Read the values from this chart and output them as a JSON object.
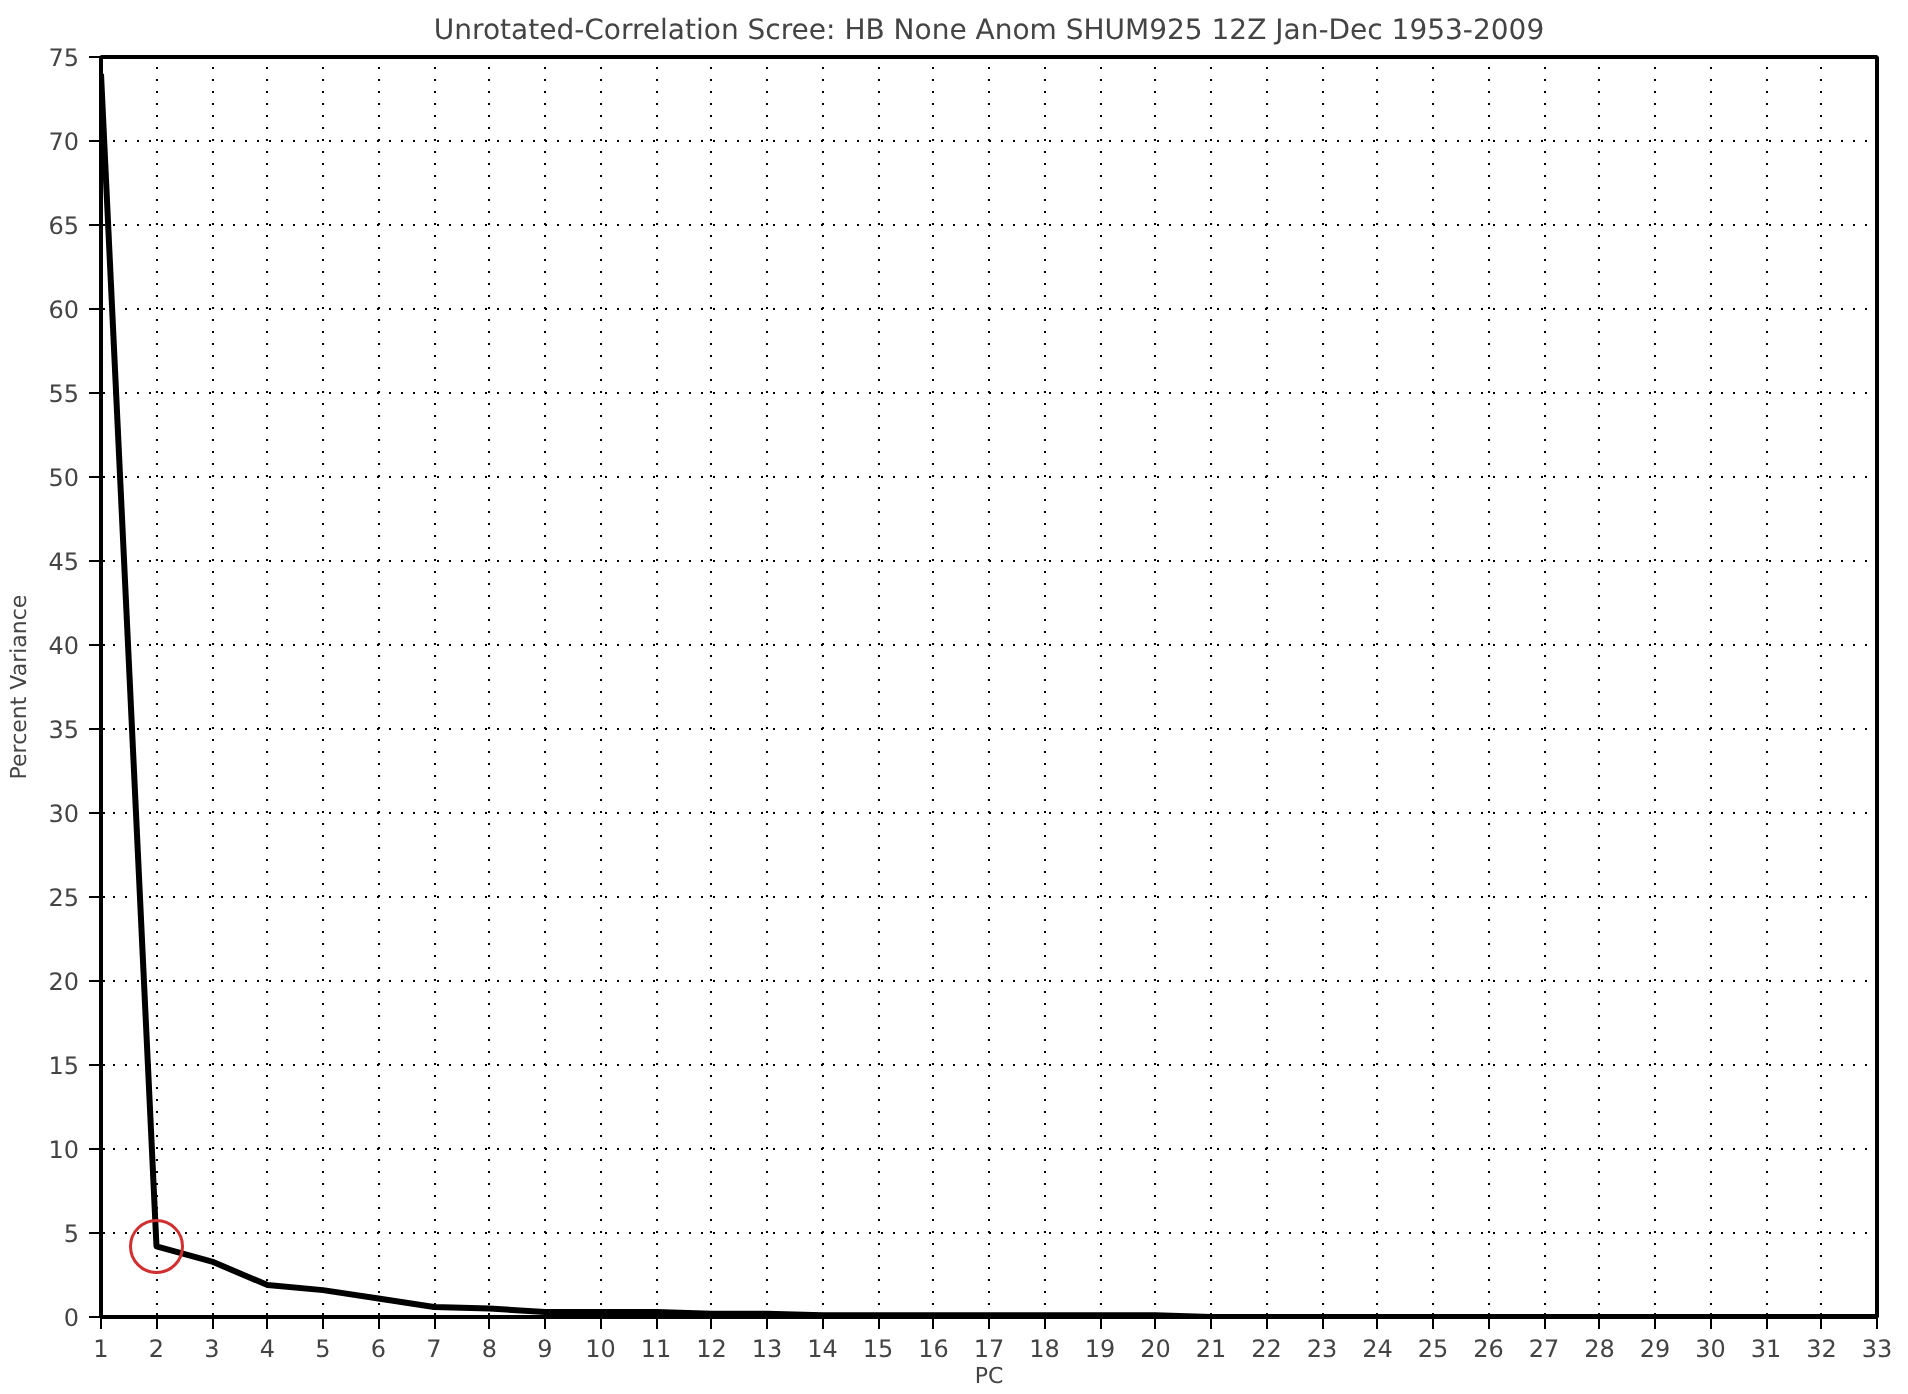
{
  "chart_data": {
    "type": "line",
    "title": "Unrotated-Correlation Scree: HB None Anom SHUM925 12Z Jan-Dec 1953-2009",
    "xlabel": "PC",
    "ylabel": "Percent Variance",
    "x": [
      1,
      2,
      3,
      4,
      5,
      6,
      7,
      8,
      9,
      10,
      11,
      12,
      13,
      14,
      15,
      16,
      17,
      18,
      19,
      20,
      21,
      22,
      23,
      24,
      25,
      26,
      27,
      28,
      29,
      30,
      31,
      32,
      33
    ],
    "series": [
      {
        "color": "#000000",
        "values": [
          74,
          4.2,
          3.3,
          1.9,
          1.6,
          1.1,
          0.6,
          0.5,
          0.3,
          0.3,
          0.3,
          0.2,
          0.2,
          0.1,
          0.1,
          0.1,
          0.1,
          0.1,
          0.1,
          0.1,
          0,
          0,
          0,
          0,
          0,
          0,
          0,
          0,
          0,
          0,
          0,
          0,
          0
        ]
      },
      {
        "type": "scatter",
        "marker": "circle",
        "color": "#d03030",
        "x": [
          2
        ],
        "values": [
          4.2
        ]
      }
    ],
    "xlim": [
      1,
      33
    ],
    "xticks": [
      1,
      2,
      3,
      4,
      5,
      6,
      7,
      8,
      9,
      10,
      11,
      12,
      13,
      14,
      15,
      16,
      17,
      18,
      19,
      20,
      21,
      22,
      23,
      24,
      25,
      26,
      27,
      28,
      29,
      30,
      31,
      32,
      33
    ],
    "ylim": [
      0,
      75
    ],
    "yticks": [
      0,
      5,
      10,
      15,
      20,
      25,
      30,
      35,
      40,
      45,
      50,
      55,
      60,
      65,
      70,
      75
    ],
    "grid": true,
    "line_style": "solid",
    "marker": "none"
  }
}
